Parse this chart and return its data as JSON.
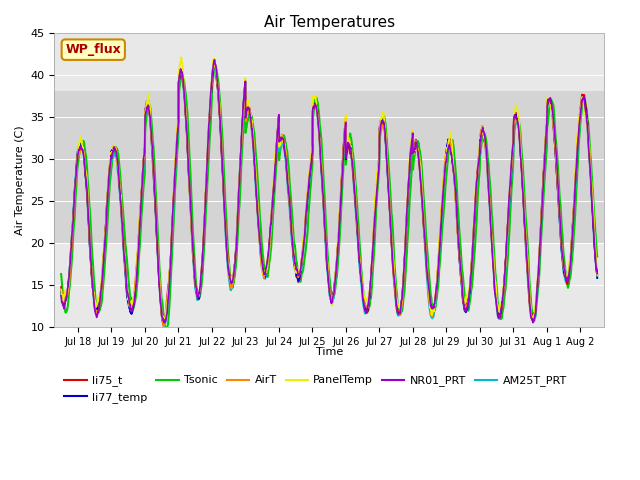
{
  "title": "Air Temperatures",
  "xlabel": "Time",
  "ylabel": "Air Temperature (C)",
  "ylim": [
    10,
    45
  ],
  "background_color": "#ffffff",
  "plot_bg_color": "#e8e8e8",
  "series": [
    {
      "name": "li75_t",
      "color": "#dd0000",
      "lw": 1.2,
      "zorder": 5
    },
    {
      "name": "li77_temp",
      "color": "#0000cc",
      "lw": 1.2,
      "zorder": 5
    },
    {
      "name": "Tsonic",
      "color": "#00cc00",
      "lw": 1.5,
      "zorder": 2
    },
    {
      "name": "AirT",
      "color": "#ff8800",
      "lw": 1.2,
      "zorder": 5
    },
    {
      "name": "PanelTemp",
      "color": "#eeee00",
      "lw": 1.2,
      "zorder": 5
    },
    {
      "name": "NR01_PRT",
      "color": "#9900cc",
      "lw": 1.2,
      "zorder": 5
    },
    {
      "name": "AM25T_PRT",
      "color": "#00bbcc",
      "lw": 1.5,
      "zorder": 4
    }
  ],
  "annotation_text": "WP_flux",
  "shade_low": 20,
  "shade_high": 38,
  "shade_color": "#d0d0d0"
}
